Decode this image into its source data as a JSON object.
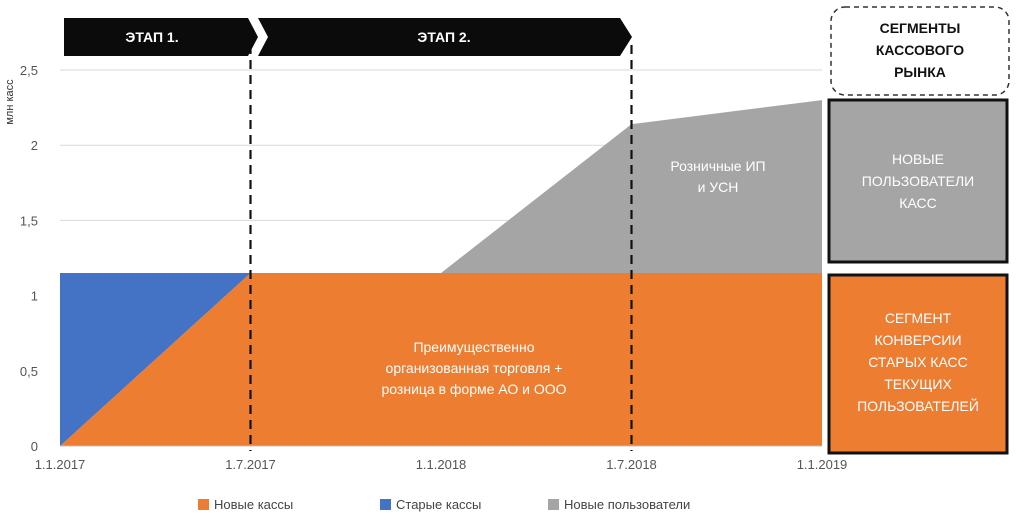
{
  "chart_data": {
    "type": "area",
    "ylabel": "млн касс",
    "x": [
      "1.1.2017",
      "1.7.2017",
      "1.1.2018",
      "1.7.2018",
      "1.1.2019"
    ],
    "x_index": [
      0,
      1,
      2,
      3,
      4
    ],
    "ylim": [
      0,
      2.5
    ],
    "yticks": [
      "0",
      "0,5",
      "1",
      "1,5",
      "2",
      "2,5"
    ],
    "grid": true,
    "series": [
      {
        "name": "Новые кассы",
        "color": "#ed7d31",
        "points": [
          [
            0,
            0
          ],
          [
            1,
            1.15
          ],
          [
            2,
            1.15
          ],
          [
            3,
            1.15
          ],
          [
            4,
            1.15
          ]
        ]
      },
      {
        "name": "Старые кассы",
        "color": "#4472c4",
        "points": [
          [
            0,
            1.15
          ],
          [
            1,
            1.15
          ]
        ]
      },
      {
        "name": "Новые пользователи",
        "color": "#a5a5a5",
        "points": [
          [
            1.5,
            1.15
          ],
          [
            2,
            1.15
          ],
          [
            3,
            2.14
          ],
          [
            4,
            2.3
          ]
        ]
      }
    ],
    "stages": [
      "ЭТАП 1.",
      "ЭТАП 2."
    ],
    "annotations": {
      "orange": [
        "Преимущественно",
        "организованная торговля +",
        "розница в форме АО и ООО"
      ],
      "gray": [
        "Розничные ИП",
        "и УСН"
      ]
    },
    "segments": {
      "title": [
        "СЕГМЕНТЫ",
        "КАССОВОГО",
        "РЫНКА"
      ],
      "new_users": [
        "НОВЫЕ",
        "ПОЛЬЗОВАТЕЛИ",
        "КАСС"
      ],
      "conversion": [
        "СЕГМЕНТ",
        "КОНВЕРСИИ",
        "СТАРЫХ КАСС",
        "ТЕКУЩИХ",
        "ПОЛЬЗОВАТЕЛЕЙ"
      ]
    },
    "legend": [
      "Новые кассы",
      "Старые кассы",
      "Новые пользователи"
    ],
    "legend_position": "bottom"
  }
}
